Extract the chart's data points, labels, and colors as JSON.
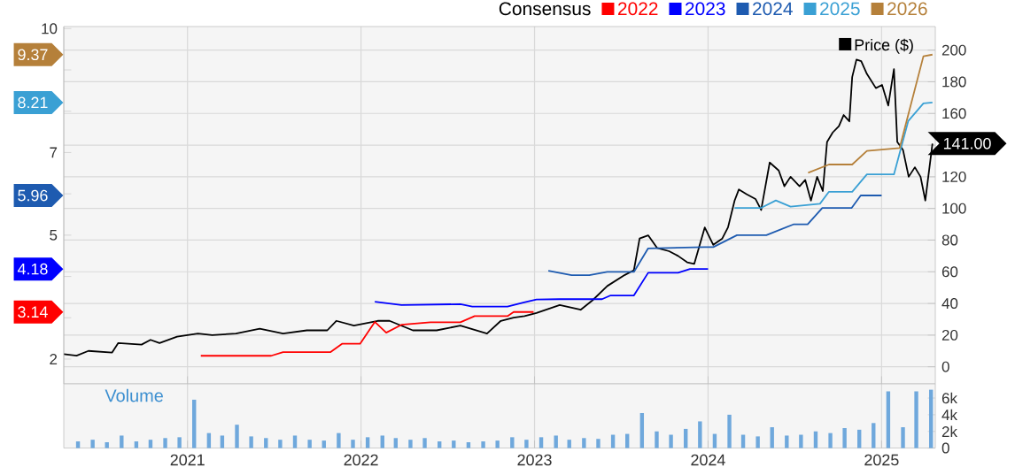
{
  "chart_data": [
    {
      "type": "line",
      "legend_title": "Consensus",
      "legend": "top",
      "grid": true,
      "tick_labels": "y",
      "annotations": [
        "3.14",
        "4.18",
        "5.96",
        "8.21",
        "9.37"
      ],
      "xlim": [
        "2020-04-15",
        "2025-04-24"
      ],
      "xticks": [
        "2021",
        "2022",
        "2023",
        "2024",
        "2025"
      ],
      "ylim": [
        1.4,
        10.05
      ],
      "yticks": [
        2,
        {
          "value": 3,
          "label": null
        },
        {
          "value": 4,
          "label": null
        },
        5,
        {
          "value": 6,
          "label": null
        },
        7,
        {
          "value": 8,
          "label": null
        },
        {
          "value": 9,
          "label": null
        },
        10
      ],
      "y2lim": [
        -10.8,
        214.9
      ],
      "y2ticks": [
        0,
        20,
        40,
        60,
        80,
        100,
        120,
        {
          "value": 140,
          "label": null
        },
        160,
        180,
        200
      ],
      "series": [
        {
          "name": "2022",
          "color": "#ff0000",
          "x": [
            "2021-01-29",
            "2021-06-26",
            "2021-07-21",
            "2021-10-29",
            "2021-11-22",
            "2021-12-30",
            "2022-01-30",
            "2022-02-23",
            "2022-03-27",
            "2022-05-27",
            "2022-07-29",
            "2022-08-28",
            "2022-11-05",
            "2022-11-18",
            "2022-12-30"
          ],
          "values": [
            2.08,
            2.08,
            2.17,
            2.17,
            2.37,
            2.37,
            2.9,
            2.64,
            2.83,
            2.89,
            2.89,
            3.04,
            3.04,
            3.14,
            3.14
          ]
        },
        {
          "name": "2023",
          "color": "#0000ff",
          "x": [
            "2022-01-30",
            "2022-03-27",
            "2022-07-29",
            "2022-08-23",
            "2022-11-05",
            "2022-12-10",
            "2023-01-05",
            "2023-02-23",
            "2023-05-23",
            "2023-06-10",
            "2023-07-29",
            "2023-08-28",
            "2023-10-30",
            "2023-11-24",
            "2024-01-01"
          ],
          "values": [
            3.39,
            3.31,
            3.33,
            3.27,
            3.27,
            3.37,
            3.44,
            3.45,
            3.45,
            3.54,
            3.54,
            4.09,
            4.09,
            4.18,
            4.18
          ]
        },
        {
          "name": "2024",
          "color": "#1e5bb0",
          "x": [
            "2023-01-30",
            "2023-03-20",
            "2023-04-26",
            "2023-06-03",
            "2023-07-29",
            "2023-08-28",
            "2023-12-25",
            "2024-01-12",
            "2024-03-02",
            "2024-05-03",
            "2024-06-29",
            "2024-07-29",
            "2024-08-29",
            "2024-10-30",
            "2024-11-18",
            "2025-01-01"
          ],
          "values": [
            4.14,
            4.03,
            4.03,
            4.11,
            4.11,
            4.68,
            4.71,
            4.71,
            5.0,
            5.0,
            5.26,
            5.26,
            5.66,
            5.66,
            5.96,
            5.96
          ]
        },
        {
          "name": "2025",
          "color": "#3aa0d4",
          "x": [
            "2024-02-26",
            "2024-04-22",
            "2024-05-23",
            "2024-06-23",
            "2024-08-24",
            "2024-09-12",
            "2024-10-31",
            "2024-12-01",
            "2025-01-27",
            "2025-02-26",
            "2025-03-30",
            "2025-04-18"
          ],
          "values": [
            5.66,
            5.66,
            5.84,
            5.69,
            5.76,
            6.05,
            6.05,
            6.47,
            6.47,
            7.76,
            8.19,
            8.21
          ]
        },
        {
          "name": "2026",
          "color": "#b5803a",
          "x": [
            "2024-07-30",
            "2024-09-12",
            "2024-10-31",
            "2024-12-01",
            "2025-02-08",
            "2025-02-21",
            "2025-03-30",
            "2025-04-18"
          ],
          "values": [
            6.51,
            6.71,
            6.71,
            7.04,
            7.11,
            7.69,
            9.33,
            9.37
          ]
        },
        {
          "name": "Price ($)",
          "color": "#000000",
          "axis": "y2",
          "x": [
            "2020-04-15",
            "2020-05-12",
            "2020-06-06",
            "2020-07-26",
            "2020-08-08",
            "2020-09-26",
            "2020-10-15",
            "2020-11-03",
            "2020-12-10",
            "2021-01-01",
            "2021-01-23",
            "2021-02-22",
            "2021-04-13",
            "2021-06-02",
            "2021-07-21",
            "2021-09-09",
            "2021-10-22",
            "2021-11-10",
            "2021-12-17",
            "2022-02-05",
            "2022-03-02",
            "2022-04-20",
            "2022-06-09",
            "2022-07-29",
            "2022-09-23",
            "2022-10-22",
            "2022-11-18",
            "2022-12-11",
            "2023-01-05",
            "2023-02-23",
            "2023-04-08",
            "2023-05-03",
            "2023-06-03",
            "2023-07-10",
            "2023-07-29",
            "2023-08-10",
            "2023-08-28",
            "2023-09-16",
            "2023-10-11",
            "2023-10-30",
            "2023-11-18",
            "2023-12-03",
            "2023-12-25",
            "2024-01-12",
            "2024-01-31",
            "2024-02-12",
            "2024-02-26",
            "2024-03-06",
            "2024-03-22",
            "2024-04-10",
            "2024-04-22",
            "2024-05-10",
            "2024-05-29",
            "2024-06-10",
            "2024-06-23",
            "2024-07-12",
            "2024-07-24",
            "2024-08-05",
            "2024-08-18",
            "2024-08-30",
            "2024-09-08",
            "2024-09-20",
            "2024-10-03",
            "2024-10-13",
            "2024-10-25",
            "2024-10-31",
            "2024-11-09",
            "2024-11-19",
            "2024-12-01",
            "2024-12-20",
            "2025-01-02",
            "2025-01-15",
            "2025-01-27",
            "2025-02-03",
            "2025-02-15",
            "2025-02-27",
            "2025-03-12",
            "2025-03-24",
            "2025-04-03",
            "2025-04-18"
          ],
          "values": [
            8,
            7,
            10,
            9,
            15,
            14,
            17,
            15,
            19,
            20,
            21,
            20,
            21,
            24,
            21,
            23,
            23,
            29,
            26,
            29,
            29,
            23,
            23,
            26,
            21,
            29,
            31,
            32,
            34,
            39,
            36,
            42,
            51,
            58,
            61,
            81,
            83,
            75,
            73,
            70,
            66,
            65,
            88,
            77,
            81,
            88,
            105,
            112,
            109,
            106,
            99,
            129,
            124,
            114,
            120,
            114,
            118,
            105,
            120,
            111,
            142,
            148,
            152,
            159,
            155,
            183,
            194,
            193,
            185,
            176,
            178,
            165,
            188,
            142,
            137,
            120,
            126,
            120,
            105,
            141
          ],
          "value_labels": [
            null,
            null,
            null,
            null,
            null,
            null,
            null,
            null,
            null,
            null,
            null,
            null,
            null,
            null,
            null,
            null,
            null,
            null,
            null,
            null,
            null,
            null,
            null,
            null,
            null,
            null,
            null,
            null,
            null,
            null,
            null,
            null,
            null,
            null,
            null,
            null,
            null,
            null,
            null,
            null,
            null,
            null,
            null,
            null,
            null,
            null,
            null,
            null,
            null,
            null,
            null,
            null,
            null,
            null,
            null,
            null,
            null,
            null,
            null,
            null,
            null,
            null,
            null,
            null,
            null,
            null,
            null,
            null,
            null,
            null,
            null,
            null,
            null,
            null,
            null,
            null,
            null,
            null,
            null,
            "141.00"
          ]
        }
      ]
    },
    {
      "type": "bar",
      "title": "Volume",
      "grid": "x",
      "color": "#6fa8dc",
      "xlim": [
        "2020-04-15",
        "2025-04-24"
      ],
      "xticks": [
        "2021",
        "2022",
        "2023",
        "2024",
        "2025"
      ],
      "ylim": [
        0,
        7.7
      ],
      "yticks": [
        0,
        {
          "value": 2,
          "label": "2k"
        },
        {
          "value": 4,
          "label": "4k"
        },
        {
          "value": 6,
          "label": "6k"
        }
      ],
      "x": [
        "2020-05-15",
        "2020-06-15",
        "2020-07-15",
        "2020-08-15",
        "2020-09-15",
        "2020-10-15",
        "2020-11-15",
        "2020-12-15",
        "2021-01-15",
        "2021-02-15",
        "2021-03-15",
        "2021-04-15",
        "2021-05-15",
        "2021-06-15",
        "2021-07-15",
        "2021-08-15",
        "2021-09-15",
        "2021-10-15",
        "2021-11-15",
        "2021-12-15",
        "2022-01-15",
        "2022-02-15",
        "2022-03-15",
        "2022-04-15",
        "2022-05-15",
        "2022-06-15",
        "2022-07-15",
        "2022-08-15",
        "2022-09-15",
        "2022-10-15",
        "2022-11-15",
        "2022-12-15",
        "2023-01-15",
        "2023-02-15",
        "2023-03-15",
        "2023-04-15",
        "2023-05-15",
        "2023-06-15",
        "2023-07-15",
        "2023-08-15",
        "2023-09-15",
        "2023-10-15",
        "2023-11-15",
        "2023-12-15",
        "2024-01-15",
        "2024-02-15",
        "2024-03-15",
        "2024-04-15",
        "2024-05-15",
        "2024-06-15",
        "2024-07-15",
        "2024-08-15",
        "2024-09-15",
        "2024-10-15",
        "2024-11-15",
        "2024-12-15",
        "2025-01-15",
        "2025-02-15",
        "2025-03-15",
        "2025-04-15"
      ],
      "values": [
        0.8,
        1.0,
        0.7,
        1.5,
        0.8,
        1.0,
        1.2,
        1.3,
        5.8,
        1.8,
        1.5,
        2.8,
        1.4,
        1.2,
        1.0,
        1.5,
        1.0,
        0.9,
        1.8,
        1.0,
        1.3,
        1.5,
        1.2,
        1.0,
        1.2,
        0.8,
        0.9,
        0.7,
        0.8,
        0.9,
        1.3,
        1.0,
        1.3,
        1.5,
        1.0,
        1.2,
        1.1,
        1.6,
        1.7,
        4.2,
        2.0,
        1.6,
        2.3,
        3.2,
        1.7,
        4.0,
        1.6,
        1.4,
        2.5,
        1.5,
        1.6,
        2.0,
        1.8,
        2.4,
        2.2,
        3.0,
        6.8,
        2.5,
        6.8,
        7.0
      ]
    }
  ]
}
